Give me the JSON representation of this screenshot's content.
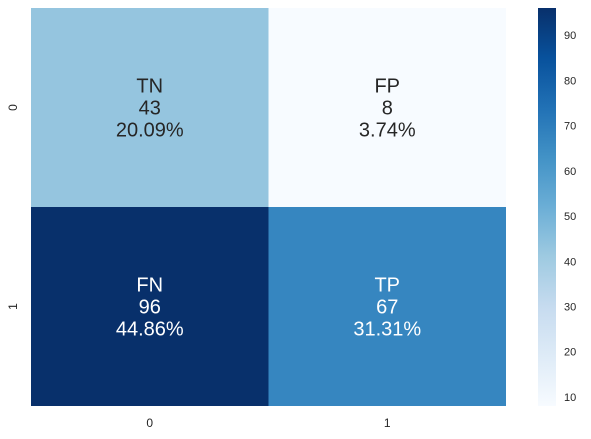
{
  "chart_data": {
    "type": "heatmap",
    "title": "",
    "xlabel": "",
    "ylabel": "",
    "x_categories": [
      "0",
      "1"
    ],
    "y_categories": [
      "0",
      "1"
    ],
    "cells": [
      [
        {
          "label": "TN",
          "value": 43,
          "percent": "20.09%"
        },
        {
          "label": "FP",
          "value": 8,
          "percent": "3.74%"
        }
      ],
      [
        {
          "label": "FN",
          "value": 96,
          "percent": "44.86%"
        },
        {
          "label": "TP",
          "value": 67,
          "percent": "31.31%"
        }
      ]
    ],
    "colorbar": {
      "min": 8,
      "max": 96,
      "ticks": [
        10,
        20,
        30,
        40,
        50,
        60,
        70,
        80,
        90
      ],
      "colormap": "Blues"
    },
    "grid": false,
    "legend": "colorbar-right"
  }
}
